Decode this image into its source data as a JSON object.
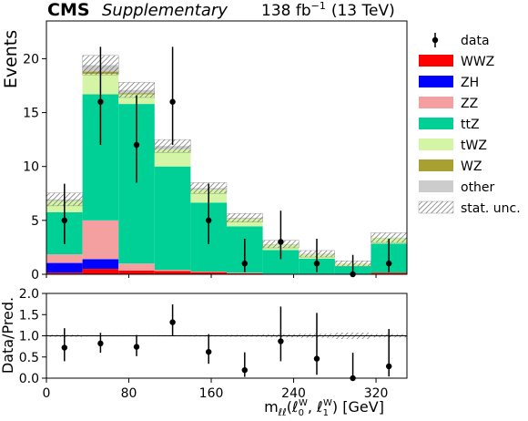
{
  "header": {
    "cms": "CMS",
    "supplementary": "Supplementary",
    "lumi": "138 fb",
    "lumi_exp": "−1",
    "energy": "(13 TeV)"
  },
  "chart_data": [
    {
      "type": "bar",
      "stacked": true,
      "name": "main",
      "ylabel": "Events",
      "ylim": [
        0,
        23.5
      ],
      "yticks": [
        0,
        5,
        10,
        15,
        20
      ],
      "bin_edges": [
        0,
        35,
        70,
        105,
        140,
        175,
        210,
        245,
        280,
        315,
        350
      ],
      "series": [
        {
          "name": "WWZ",
          "color": "#ff0000",
          "values": [
            0.15,
            0.5,
            0.35,
            0.3,
            0.2,
            0.1,
            0.05,
            0.05,
            0.0,
            0.15
          ]
        },
        {
          "name": "ZH",
          "color": "#0000ff",
          "values": [
            0.9,
            0.9,
            0.0,
            0.0,
            0.0,
            0.0,
            0.0,
            0.0,
            0.0,
            0.0
          ]
        },
        {
          "name": "ZZ",
          "color": "#f4a0a0",
          "values": [
            0.8,
            3.6,
            0.65,
            0.1,
            0.05,
            0.05,
            0.0,
            0.0,
            0.0,
            0.0
          ]
        },
        {
          "name": "ttZ",
          "color": "#00d096",
          "values": [
            3.9,
            11.7,
            14.8,
            9.6,
            6.4,
            4.3,
            2.2,
            1.4,
            0.75,
            2.7
          ]
        },
        {
          "name": "tWZ",
          "color": "#d3f5a5",
          "values": [
            1.05,
            1.9,
            0.9,
            1.6,
            1.2,
            0.7,
            0.5,
            0.4,
            0.25,
            0.5
          ]
        },
        {
          "name": "WZ",
          "color": "#a8a030",
          "values": [
            0.0,
            0.2,
            0.1,
            0.0,
            0.0,
            0.0,
            0.0,
            0.0,
            0.0,
            0.0
          ]
        },
        {
          "name": "other",
          "color": "#cccccc",
          "values": [
            0.15,
            0.6,
            0.3,
            0.3,
            0.15,
            0.1,
            0.05,
            0.05,
            0.0,
            0.05
          ]
        }
      ],
      "unc": [
        0.6,
        0.9,
        0.7,
        0.6,
        0.5,
        0.4,
        0.35,
        0.3,
        0.25,
        0.45
      ],
      "data": {
        "x": [
          17.5,
          52.5,
          87.5,
          122.5,
          157.5,
          192.5,
          227.5,
          262.5,
          297.5,
          332.5
        ],
        "y": [
          5,
          16,
          12,
          16,
          5,
          1,
          3,
          1,
          0,
          1
        ],
        "err_low": [
          2.2,
          4.0,
          3.5,
          4.0,
          2.2,
          0.8,
          1.6,
          0.8,
          0.0,
          0.8
        ],
        "err_high": [
          3.4,
          5.1,
          4.6,
          5.1,
          3.4,
          2.3,
          2.9,
          2.3,
          1.8,
          2.3
        ]
      },
      "legend_position": "right",
      "legend": [
        {
          "name": "data",
          "kind": "errorbar"
        },
        {
          "name": "WWZ",
          "kind": "patch",
          "color": "#ff0000"
        },
        {
          "name": "ZH",
          "kind": "patch",
          "color": "#0000ff"
        },
        {
          "name": "ZZ",
          "kind": "patch",
          "color": "#f4a0a0"
        },
        {
          "name": "ttZ",
          "kind": "patch",
          "color": "#00d096"
        },
        {
          "name": "tWZ",
          "kind": "patch",
          "color": "#d3f5a5"
        },
        {
          "name": "WZ",
          "kind": "patch",
          "color": "#a8a030"
        },
        {
          "name": "other",
          "kind": "patch",
          "color": "#cccccc"
        },
        {
          "name": "stat. unc.",
          "kind": "hatch"
        }
      ]
    },
    {
      "type": "scatter",
      "name": "ratio",
      "ylabel": "Data/Pred.",
      "ylim": [
        0,
        2.0
      ],
      "yticks": [
        "0.0",
        "0.5",
        "1.0",
        "1.5",
        "2.0"
      ],
      "reference_line": 1.0,
      "xlabel_prefix": "m",
      "xlabel_suffix": " [GeV]",
      "xlim": [
        0,
        350
      ],
      "xticks": [
        0,
        80,
        160,
        240,
        320
      ],
      "x": [
        17.5,
        52.5,
        87.5,
        122.5,
        157.5,
        192.5,
        227.5,
        262.5,
        297.5,
        332.5
      ],
      "y": [
        0.72,
        0.82,
        0.74,
        1.32,
        0.62,
        0.19,
        0.87,
        0.46,
        0.0,
        0.28
      ],
      "err_low": [
        0.32,
        0.22,
        0.22,
        0.33,
        0.28,
        0.16,
        0.47,
        0.38,
        0.0,
        0.24
      ],
      "err_high": [
        0.46,
        0.25,
        0.28,
        0.42,
        0.42,
        0.42,
        0.82,
        1.08,
        0.6,
        0.88
      ]
    }
  ]
}
